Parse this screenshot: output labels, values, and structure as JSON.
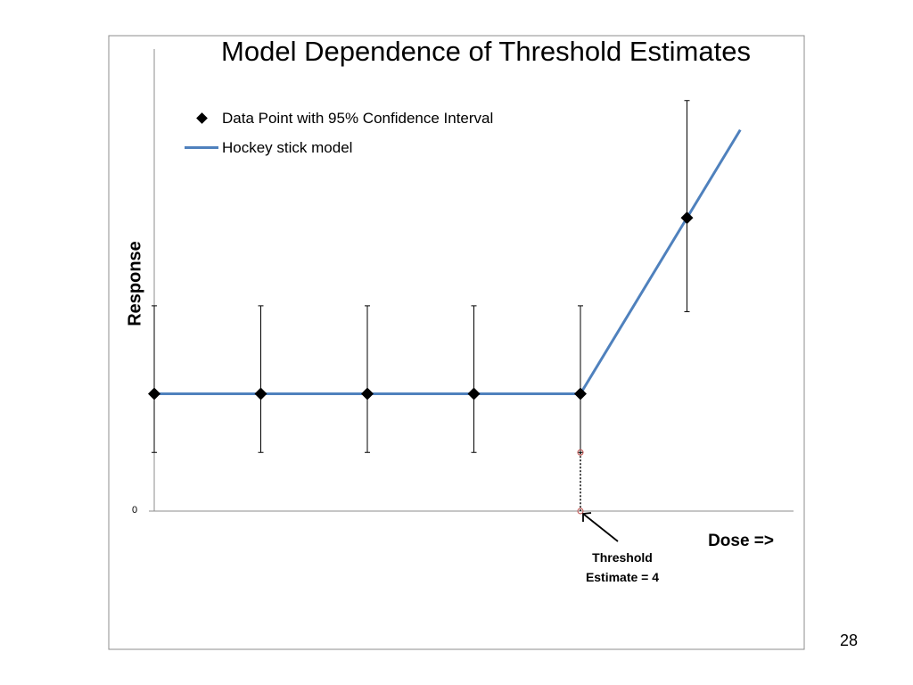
{
  "slide": {
    "page_number": "28"
  },
  "chart_data": {
    "type": "scatter",
    "title": "Model Dependence of Threshold Estimates",
    "xlabel": "Dose =>",
    "ylabel": "Response",
    "y_tick_labels": [
      "0"
    ],
    "xlim": [
      0,
      6
    ],
    "ylim": [
      0,
      4.1
    ],
    "grid": false,
    "legend": {
      "placement": "top-left",
      "entries": [
        {
          "label": "Data Point with 95% Confidence  Interval",
          "marker": "diamond"
        },
        {
          "label": "Hockey stick model",
          "marker": "line"
        }
      ]
    },
    "series": [
      {
        "name": "Data Point with 95% Confidence  Interval",
        "kind": "points",
        "color": "#000000",
        "x": [
          0,
          1,
          2,
          3,
          4,
          5
        ],
        "y": [
          1,
          1,
          1,
          1,
          1,
          2.5
        ],
        "ci_low": [
          0.5,
          0.5,
          0.5,
          0.5,
          0.5,
          1.7
        ],
        "ci_high": [
          1.75,
          1.75,
          1.75,
          1.75,
          1.75,
          3.5
        ]
      },
      {
        "name": "Hockey stick model",
        "kind": "line",
        "color": "#4f81bd",
        "x": [
          0,
          4,
          5.5
        ],
        "y": [
          1,
          1,
          3.25
        ]
      }
    ],
    "threshold": {
      "x": 4,
      "lower_marker_y": 0,
      "upper_marker_y": 0.5,
      "marker_color": "#c0504d",
      "annotation": [
        "Threshold",
        "Estimate = 4"
      ]
    }
  }
}
